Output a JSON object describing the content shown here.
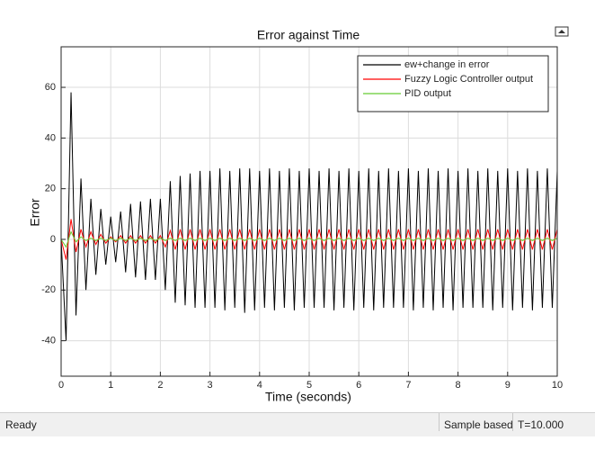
{
  "chart_data": {
    "type": "line",
    "title": "Error against Time",
    "xlabel": "Time (seconds)",
    "ylabel": "Error",
    "x": [
      0,
      0.1,
      0.2,
      0.3,
      0.4,
      0.5,
      0.6,
      0.7,
      0.8,
      0.9,
      1,
      1.1,
      1.2,
      1.3,
      1.4,
      1.5,
      1.6,
      1.7,
      1.8,
      1.9,
      2,
      2.1,
      2.2,
      2.3,
      2.4,
      2.5,
      2.6,
      2.7,
      2.8,
      2.9,
      3,
      3.1,
      3.2,
      3.3,
      3.4,
      3.5,
      3.6,
      3.7,
      3.8,
      3.9,
      4,
      4.1,
      4.2,
      4.3,
      4.4,
      4.5,
      4.6,
      4.7,
      4.8,
      4.9,
      5,
      5.1,
      5.2,
      5.3,
      5.4,
      5.5,
      5.6,
      5.7,
      5.8,
      5.9,
      6,
      6.1,
      6.2,
      6.3,
      6.4,
      6.5,
      6.6,
      6.7,
      6.8,
      6.9,
      7,
      7.1,
      7.2,
      7.3,
      7.4,
      7.5,
      7.6,
      7.7,
      7.8,
      7.9,
      8,
      8.1,
      8.2,
      8.3,
      8.4,
      8.5,
      8.6,
      8.7,
      8.8,
      8.9,
      9,
      9.1,
      9.2,
      9.3,
      9.4,
      9.5,
      9.6,
      9.7,
      9.8,
      9.9,
      10
    ],
    "series": [
      {
        "name": "ew+change in error",
        "color": "#000000",
        "values": [
          0,
          -40,
          58,
          -30,
          24,
          -20,
          16,
          -14,
          12,
          -10,
          9,
          -9,
          11,
          -13,
          14,
          -15,
          15,
          -16,
          16,
          -16,
          16,
          -20,
          23,
          -25,
          25,
          -26,
          26,
          -27,
          27,
          -27,
          27,
          -27,
          28,
          -28,
          27,
          -27,
          28,
          -29,
          28,
          -28,
          27,
          -27,
          28,
          -28,
          27,
          -27,
          28,
          -28,
          27,
          -27,
          28,
          -27,
          27,
          -27,
          28,
          -28,
          27,
          -27,
          28,
          -28,
          27,
          -27,
          28,
          -28,
          27,
          -27,
          28,
          -27,
          27,
          -27,
          28,
          -28,
          27,
          -27,
          28,
          -28,
          27,
          -27,
          28,
          -28,
          27,
          -27,
          28,
          -27,
          27,
          -27,
          28,
          -28,
          27,
          -27,
          28,
          -28,
          27,
          -27,
          28,
          -28,
          27,
          -27,
          28,
          -27,
          27
        ]
      },
      {
        "name": "Fuzzy Logic  Controller output",
        "color": "#ff0000",
        "values": [
          0,
          -8,
          8,
          -5,
          4,
          -3,
          3,
          -2,
          2,
          -1.5,
          1,
          -1,
          1.5,
          -1.5,
          1.5,
          -1.5,
          1.5,
          -1.5,
          1.5,
          -1.5,
          1.5,
          -3,
          3.5,
          -4,
          4,
          -4,
          4,
          -4,
          4,
          -4,
          4,
          -4,
          4,
          -4,
          4,
          -4,
          4,
          -4,
          4,
          -4,
          4,
          -4,
          4,
          -4,
          4,
          -4,
          4,
          -4,
          4,
          -4,
          4,
          -4,
          4,
          -4,
          4,
          -4,
          4,
          -4,
          4,
          -4,
          4,
          -4,
          4,
          -4,
          4,
          -4,
          4,
          -4,
          4,
          -4,
          4,
          -4,
          4,
          -4,
          4,
          -4,
          4,
          -4,
          4,
          -4,
          4,
          -4,
          4,
          -4,
          4,
          -4,
          4,
          -4,
          4,
          -4,
          4,
          -4,
          4,
          -4,
          4,
          -4,
          4,
          -4,
          4,
          -4,
          4
        ]
      },
      {
        "name": "PID output",
        "color": "#66cc33",
        "values": [
          0,
          -3,
          3,
          -1,
          1,
          -0.5,
          0.5,
          -0.5,
          0.5,
          -0.5,
          0.5,
          -0.5,
          0.5,
          -0.5,
          0.5,
          -0.5,
          0.5,
          -0.5,
          0.5,
          -0.5,
          0.5,
          -0.5,
          0.5,
          -0.5,
          0.5,
          -0.5,
          0.5,
          -0.5,
          0.5,
          -0.5,
          0.5,
          -0.5,
          0.5,
          -0.5,
          0.5,
          -0.5,
          0.5,
          -0.5,
          0.5,
          -0.5,
          0.5,
          -0.5,
          0.5,
          -0.5,
          0.5,
          -0.5,
          0.5,
          -0.5,
          0.5,
          -0.5,
          0.5,
          -0.5,
          0.5,
          -0.5,
          0.5,
          -0.5,
          0.5,
          -0.5,
          0.5,
          -0.5,
          0.5,
          -0.5,
          0.5,
          -0.5,
          0.5,
          -0.5,
          0.5,
          -0.5,
          0.5,
          -0.5,
          0.5,
          -0.5,
          0.5,
          -0.5,
          0.5,
          -0.5,
          0.5,
          -0.5,
          0.5,
          -0.5,
          0.5,
          -0.5,
          0.5,
          -0.5,
          0.5,
          -0.5,
          0.5,
          -0.5,
          0.5,
          -0.5,
          0.5,
          -0.5,
          0.5,
          -0.5,
          0.5,
          -0.5,
          0.5,
          -0.5,
          0.5,
          -0.5,
          0.5
        ]
      }
    ],
    "xlim": [
      0,
      10
    ],
    "ylim": [
      -54,
      76
    ],
    "xticks": [
      0,
      1,
      2,
      3,
      4,
      5,
      6,
      7,
      8,
      9,
      10
    ],
    "yticks": [
      -40,
      -20,
      0,
      20,
      40,
      60
    ],
    "grid": true,
    "legend": "upper right"
  },
  "status_bar": {
    "status": "Ready",
    "mode": "Sample based",
    "time": "T=10.000"
  }
}
